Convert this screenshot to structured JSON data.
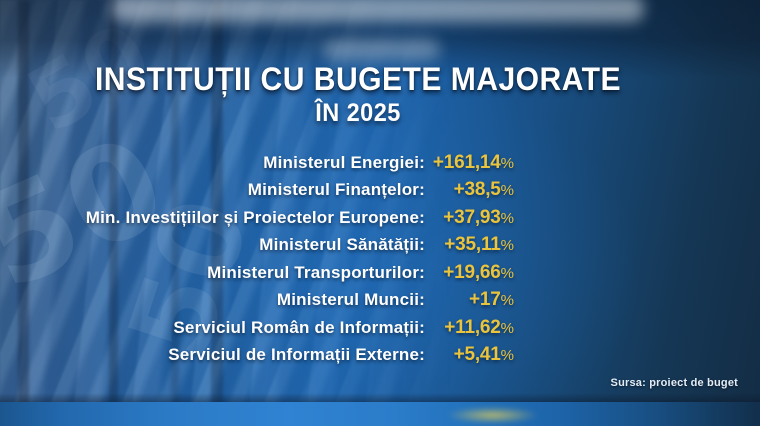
{
  "display": {
    "title": "INSTITUȚII CU BUGETE MAJORATE",
    "subtitle": "ÎN 2025",
    "rows": [
      {
        "label": "Ministerul Energiei:",
        "value": "+161,14",
        "pct": "%"
      },
      {
        "label": "Ministerul Finanțelor:",
        "value": "+38,5",
        "pct": "%"
      },
      {
        "label": "Min. Investițiilor și Proiectelor Europene:",
        "value": "+37,93",
        "pct": "%"
      },
      {
        "label": "Ministerul Sănătății:",
        "value": "+35,11",
        "pct": "%"
      },
      {
        "label": "Ministerul Transporturilor:",
        "value": "+19,66",
        "pct": "%"
      },
      {
        "label": "Ministerul Muncii:",
        "value": "+17",
        "pct": "%"
      },
      {
        "label": "Serviciul Român de Informații:",
        "value": "+11,62",
        "pct": "%"
      },
      {
        "label": "Serviciul de Informații Externe:",
        "value": "+5,41",
        "pct": "%"
      }
    ],
    "source": "Sursa: proiect de buget"
  },
  "chart_data": {
    "type": "table",
    "title": "INSTITUȚII CU BUGETE MAJORATE",
    "subtitle": "ÎN 2025",
    "categories": [
      "Ministerul Energiei",
      "Ministerul Finanțelor",
      "Min. Investițiilor și Proiectelor Europene",
      "Ministerul Sănătății",
      "Ministerul Transporturilor",
      "Ministerul Muncii",
      "Serviciul Român de Informații",
      "Serviciul de Informații Externe"
    ],
    "values": [
      161.14,
      38.5,
      37.93,
      35.11,
      19.66,
      17,
      11.62,
      5.41
    ],
    "unit": "%",
    "value_labels": [
      "+161,14%",
      "+38,5%",
      "+37,93%",
      "+35,11%",
      "+19,66%",
      "+17%",
      "+11,62%",
      "+5,41%"
    ],
    "source": "Sursa: proiect de buget"
  },
  "background": {
    "banknote_digit": "50"
  },
  "colors": {
    "accent_yellow": "#e9c43c",
    "bright_blue_center": "#1e65ae",
    "dark_navy_edge": "#132c44",
    "text_white": "#ffffff"
  }
}
